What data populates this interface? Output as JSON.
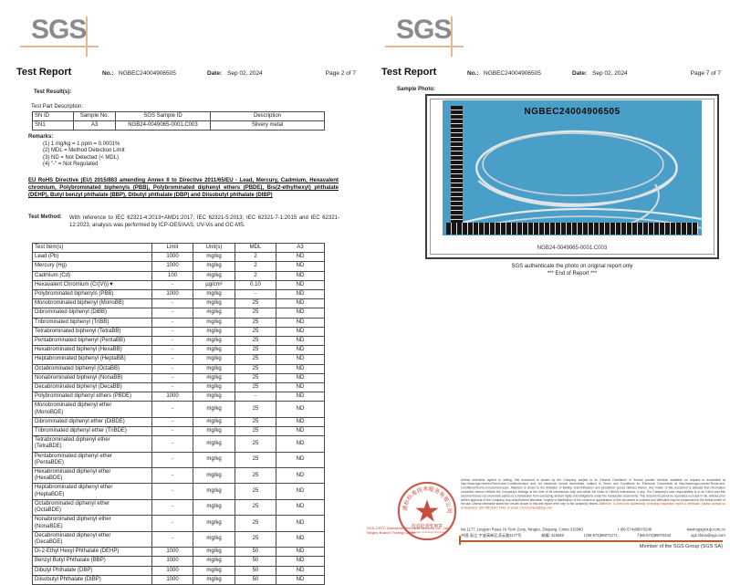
{
  "brand": {
    "logo_text": "SGS",
    "accent_orange": "#e3bb8e",
    "stamp_red": "#c23b2e",
    "photo_blue": "#4a9fc8"
  },
  "page_left": {
    "title": "Test Report",
    "no_label": "No.:",
    "report_no": "NGBEC24004906505",
    "date_label": "Date:",
    "date": "Sep 02, 2024",
    "page_label": "Page 2 of 7",
    "test_results_label": "Test Result(s):",
    "part_desc_label": "Test Part Description:",
    "part_table": {
      "headers": [
        "SN ID",
        "Sample No.",
        "SGS Sample ID",
        "Description"
      ],
      "rows": [
        [
          "SN1",
          "A3",
          "NGB24-0049065-0001.C003",
          "Silvery metal"
        ]
      ]
    },
    "remarks_label": "Remarks:",
    "remarks": [
      "(1)  1 mg/kg = 1 ppm = 0.0001%",
      "(2)  MDL = Method Detection Limit",
      "(3)  ND = Not Detected (< MDL)",
      "(4)  \"-\" = Not Regulated"
    ],
    "directive": "EU RoHS Directive (EU) 2015/863 amending Annex II to Directive 2011/65/EU - Lead, Mercury, Cadmium, Hexavalent chromium, Polybrominated biphenyls (PBB), Polybrominated diphenyl ethers (PBDE), Bis(2-ethylhexyl) phthalate (DEHP), Butyl benzyl phthalate (BBP), Dibutyl phthalate (DBP) and Diisobutyl phthalate (DIBP)",
    "test_method_label": "Test Method:",
    "test_method": "With reference to IEC 62321-4:2013+AMD1:2017, IEC 62321-5:2013, IEC 62321-7-1:2015 and IEC 62321-12:2023, analysis was performed by ICP-OES/AAS, UV-Vis and GC-MS.",
    "results_table": {
      "headers": [
        "Test Item(s)",
        "Limit",
        "Unit(s)",
        "MDL",
        "A3"
      ],
      "rows": [
        [
          "Lead (Pb)",
          "1000",
          "mg/kg",
          "2",
          "ND"
        ],
        [
          "Mercury (Hg)",
          "1000",
          "mg/kg",
          "2",
          "ND"
        ],
        [
          "Cadmium (Cd)",
          "100",
          "mg/kg",
          "2",
          "ND"
        ],
        [
          "Hexavalent Chromium (Cr(VI))▼",
          "-",
          "µg/cm²",
          "0.10",
          "ND"
        ],
        [
          "Polybrominated biphenyls (PBB)",
          "1000",
          "mg/kg",
          "-",
          "ND"
        ],
        [
          "Monobrominated biphenyl (MonoBB)",
          "-",
          "mg/kg",
          "25",
          "ND"
        ],
        [
          "Dibrominated biphenyl (DiBB)",
          "-",
          "mg/kg",
          "25",
          "ND"
        ],
        [
          "Tribrominated biphenyl (TriBB)",
          "-",
          "mg/kg",
          "25",
          "ND"
        ],
        [
          "Tetrabrominated biphenyl (TetraBB)",
          "-",
          "mg/kg",
          "25",
          "ND"
        ],
        [
          "Pentabrominated biphenyl (PentaBB)",
          "-",
          "mg/kg",
          "25",
          "ND"
        ],
        [
          "Hexabrominated biphenyl (HexaBB)",
          "-",
          "mg/kg",
          "25",
          "ND"
        ],
        [
          "Heptabrominated biphenyl (HeptaBB)",
          "-",
          "mg/kg",
          "25",
          "ND"
        ],
        [
          "Octabrominated biphenyl (OctaBB)",
          "-",
          "mg/kg",
          "25",
          "ND"
        ],
        [
          "Nonabrominated biphenyl (NonaBB)",
          "-",
          "mg/kg",
          "25",
          "ND"
        ],
        [
          "Decabrominated biphenyl (DecaBB)",
          "-",
          "mg/kg",
          "25",
          "ND"
        ],
        [
          "Polybrominated diphenyl ethers (PBDE)",
          "1000",
          "mg/kg",
          "-",
          "ND"
        ],
        [
          "Monobrominated diphenyl ether\n(MonoBDE)",
          "-",
          "mg/kg",
          "25",
          "ND"
        ],
        [
          "Dibrominated diphenyl ether (DiBDE)",
          "-",
          "mg/kg",
          "25",
          "ND"
        ],
        [
          "Tribrominated diphenyl ether (TriBDE)",
          "-",
          "mg/kg",
          "25",
          "ND"
        ],
        [
          "Tetrabrominated diphenyl ether\n(TetraBDE)",
          "-",
          "mg/kg",
          "25",
          "ND"
        ],
        [
          "Pentabrominated diphenyl ether\n(PentaBDE)",
          "-",
          "mg/kg",
          "25",
          "ND"
        ],
        [
          "Hexabrominated diphenyl ether\n(HexaBDE)",
          "-",
          "mg/kg",
          "25",
          "ND"
        ],
        [
          "Heptabrominated diphenyl ether\n(HeptaBDE)",
          "-",
          "mg/kg",
          "25",
          "ND"
        ],
        [
          "Octabrominated diphenyl ether\n(OctaBDE)",
          "-",
          "mg/kg",
          "25",
          "ND"
        ],
        [
          "Nonabrominated diphenyl ether\n(NonaBDE)",
          "-",
          "mg/kg",
          "25",
          "ND"
        ],
        [
          "Decabrominated diphenyl ether\n(DecaBDE)",
          "-",
          "mg/kg",
          "25",
          "ND"
        ],
        [
          "Di-2-Ethyl Hexyl Phthalate (DEHP)",
          "1000",
          "mg/kg",
          "50",
          "ND"
        ],
        [
          "Benzyl Butyl Phthalate (BBP)",
          "1000",
          "mg/kg",
          "50",
          "ND"
        ],
        [
          "Dibutyl Phthalate (DBP)",
          "1000",
          "mg/kg",
          "50",
          "ND"
        ],
        [
          "Diisobutyl Phthalate (DIBP)",
          "1000",
          "mg/kg",
          "50",
          "ND"
        ]
      ]
    }
  },
  "page_right": {
    "title": "Test Report",
    "no_label": "No.:",
    "report_no": "NGBEC24004906505",
    "date_label": "Date:",
    "date": "Sep 02, 2024",
    "page_label": "Page 7 of 7",
    "sample_photo_label": "Sample Photo:",
    "photo": {
      "sample_id": "NGBEC24004906505",
      "caption": "NGB24-0049065-0001.C003"
    },
    "authenticate_line": "SGS authenticate the photo on original report only",
    "end_line": "*** End of Report ***",
    "footer": {
      "stamp_ring_text": "通标标准技术服务有限公司宁波分公司",
      "stamp_line1": "检验检测专用章",
      "stamp_line2": "Inspection & Testing Services",
      "company_red_line1": "SGS-CSTC Standards Technical Services Co., Ltd.",
      "company_red_line2": "Ningbo Branch Testing Center",
      "disclaimer": "Unless otherwise agreed in writing, this document is issued by the Company subject to its General Conditions of Service printed overleaf, available on request or accessible at http://www.sgs.com/en/Terms-and-Conditions.aspx and, for electronic format documents, subject to Terms and Conditions for Electronic Documents at http://www.sgs.com/en/Terms-and-Conditions/Terms-e-Document.aspx. Attention is drawn to the limitation of liability, indemnification and jurisdiction issues defined therein. Any holder of this document is advised that information contained hereon reflects the Company's findings at the time of its intervention only and within the limits of Client's instructions, if any. The Company's sole responsibility is to its Client and this document does not exonerate parties to a transaction from exercising all their rights and obligations under the transaction documents. This document cannot be reproduced except in full, without prior written approval of the Company. Any unauthorized alteration, forgery or falsification of the content or appearance of this document is unlawful and offenders may be prosecuted to the fullest extent of the law. Unless otherwise stated the results shown in this test report refer only to the sample(s) tested.",
      "attention": "Attention: To check the authenticity of testing /inspection report & certificate, please contact us at telephone: (86-755) 8307 1443, or email: CN.Doccheck@sgs.com",
      "address_en": "No.1177, Lingyun Road, Hi-Tech Zone, Ningbo, Zhejiang, China 315040",
      "fax_en": "f (86-574)89070249",
      "website": "www.sgsgroup.com.cn",
      "address_cn": "中国·浙江·宁波高新区凌云路1177号",
      "postal_cn": "邮编: 315040",
      "tel_cn": "t (86-574)89071271",
      "fax_cn": "f (86-574)89070242",
      "email": "sgs.china@sgs.com",
      "member_line": "Member of the SGS Group (SGS SA)"
    }
  }
}
